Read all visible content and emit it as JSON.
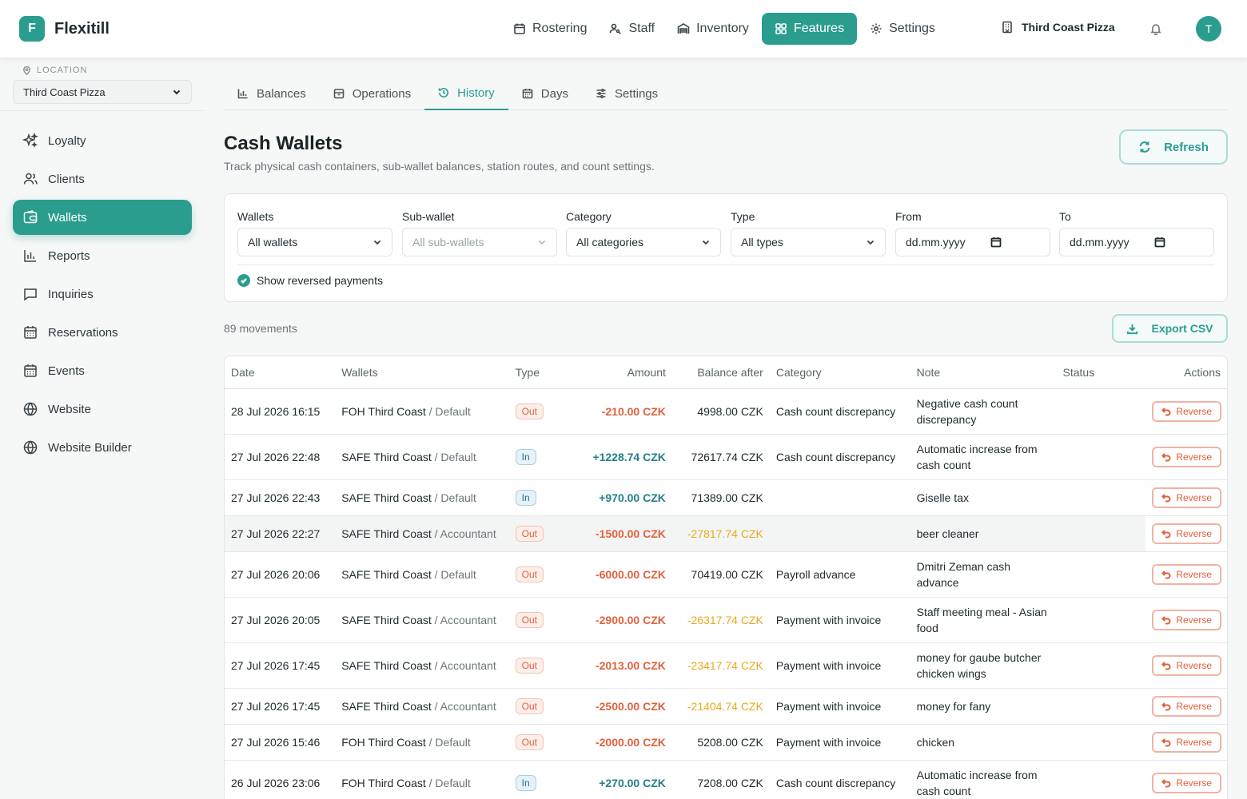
{
  "app": {
    "logo_letter": "F",
    "name": "Flexitill",
    "accent": "#2a9d8f"
  },
  "topnav": {
    "items": [
      {
        "label": "Rostering",
        "icon": "calendar-icon"
      },
      {
        "label": "Staff",
        "icon": "user-key-icon"
      },
      {
        "label": "Inventory",
        "icon": "warehouse-icon"
      },
      {
        "label": "Features",
        "icon": "grid-icon",
        "active": true
      },
      {
        "label": "Settings",
        "icon": "gear-icon"
      }
    ],
    "location": "Third Coast Pizza",
    "avatar": "T"
  },
  "sidebar": {
    "location_label": "LOCATION",
    "location_value": "Third Coast Pizza",
    "items": [
      {
        "label": "Loyalty",
        "icon": "sparkles-icon"
      },
      {
        "label": "Clients",
        "icon": "users-icon"
      },
      {
        "label": "Wallets",
        "icon": "wallet-icon",
        "active": true
      },
      {
        "label": "Reports",
        "icon": "bar-chart-icon"
      },
      {
        "label": "Inquiries",
        "icon": "message-icon"
      },
      {
        "label": "Reservations",
        "icon": "calendar-grid-icon"
      },
      {
        "label": "Events",
        "icon": "calendar-grid-icon"
      },
      {
        "label": "Website",
        "icon": "globe-icon"
      },
      {
        "label": "Website Builder",
        "icon": "globe-icon"
      }
    ]
  },
  "subtabs": [
    {
      "label": "Balances",
      "icon": "bar-chart-icon"
    },
    {
      "label": "Operations",
      "icon": "archive-icon"
    },
    {
      "label": "History",
      "icon": "history-icon",
      "active": true
    },
    {
      "label": "Days",
      "icon": "calendar-icon"
    },
    {
      "label": "Settings",
      "icon": "sliders-icon"
    }
  ],
  "page": {
    "title": "Cash Wallets",
    "subtitle": "Track physical cash containers, sub-wallet balances, station routes, and count settings.",
    "refresh_label": "Refresh"
  },
  "filters": {
    "wallets": {
      "label": "Wallets",
      "value": "All wallets"
    },
    "subwallet": {
      "label": "Sub-wallet",
      "value": "All sub-wallets"
    },
    "category": {
      "label": "Category",
      "value": "All categories"
    },
    "type": {
      "label": "Type",
      "value": "All types"
    },
    "from": {
      "label": "From",
      "value": "dd.mm.yyyy"
    },
    "to": {
      "label": "To",
      "value": "dd.mm.yyyy"
    },
    "show_reversed_label": "Show reversed payments",
    "show_reversed_checked": true
  },
  "summary": {
    "count_text": "89 movements",
    "export_label": "Export CSV"
  },
  "table": {
    "headers": {
      "date": "Date",
      "wallets": "Wallets",
      "type": "Type",
      "amount": "Amount",
      "balance": "Balance after",
      "category": "Category",
      "note": "Note",
      "status": "Status",
      "actions": "Actions"
    },
    "reverse_label": "Reverse",
    "rows": [
      {
        "date": "28 Jul 2026 16:15",
        "wallet": "FOH Third Coast",
        "sub": "/ Default",
        "type": "Out",
        "amount": "-210.00 CZK",
        "balance": "4998.00 CZK",
        "category": "Cash count discrepancy",
        "note": "Negative cash count discrepancy",
        "status": ""
      },
      {
        "date": "27 Jul 2026 22:48",
        "wallet": "SAFE Third Coast",
        "sub": "/ Default",
        "type": "In",
        "amount": "+1228.74 CZK",
        "balance": "72617.74 CZK",
        "category": "Cash count discrepancy",
        "note": "Automatic increase from cash count",
        "status": ""
      },
      {
        "date": "27 Jul 2026 22:43",
        "wallet": "SAFE Third Coast",
        "sub": "/ Default",
        "type": "In",
        "amount": "+970.00 CZK",
        "balance": "71389.00 CZK",
        "category": "",
        "note": "Giselle tax",
        "status": ""
      },
      {
        "date": "27 Jul 2026 22:27",
        "wallet": "SAFE Third Coast",
        "sub": "/ Accountant",
        "type": "Out",
        "amount": "-1500.00 CZK",
        "balance": "-27817.74 CZK",
        "category": "",
        "note": "beer cleaner",
        "status": ""
      },
      {
        "date": "27 Jul 2026 20:06",
        "wallet": "SAFE Third Coast",
        "sub": "/ Default",
        "type": "Out",
        "amount": "-6000.00 CZK",
        "balance": "70419.00 CZK",
        "category": "Payroll advance",
        "note": "Dmitri Zeman cash advance",
        "status": ""
      },
      {
        "date": "27 Jul 2026 20:05",
        "wallet": "SAFE Third Coast",
        "sub": "/ Accountant",
        "type": "Out",
        "amount": "-2900.00 CZK",
        "balance": "-26317.74 CZK",
        "category": "Payment with invoice",
        "note": "Staff meeting meal - Asian food",
        "status": ""
      },
      {
        "date": "27 Jul 2026 17:45",
        "wallet": "SAFE Third Coast",
        "sub": "/ Accountant",
        "type": "Out",
        "amount": "-2013.00 CZK",
        "balance": "-23417.74 CZK",
        "category": "Payment with invoice",
        "note": "money for gaube butcher chicken wings",
        "status": ""
      },
      {
        "date": "27 Jul 2026 17:45",
        "wallet": "SAFE Third Coast",
        "sub": "/ Accountant",
        "type": "Out",
        "amount": "-2500.00 CZK",
        "balance": "-21404.74 CZK",
        "category": "Payment with invoice",
        "note": "money for fany",
        "status": ""
      },
      {
        "date": "27 Jul 2026 15:46",
        "wallet": "FOH Third Coast",
        "sub": "/ Default",
        "type": "Out",
        "amount": "-2000.00 CZK",
        "balance": "5208.00 CZK",
        "category": "Payment with invoice",
        "note": "chicken",
        "status": ""
      },
      {
        "date": "26 Jul 2026 23:06",
        "wallet": "FOH Third Coast",
        "sub": "/ Default",
        "type": "In",
        "amount": "+270.00 CZK",
        "balance": "7208.00 CZK",
        "category": "Cash count discrepancy",
        "note": "Automatic increase from cash count",
        "status": ""
      }
    ]
  }
}
